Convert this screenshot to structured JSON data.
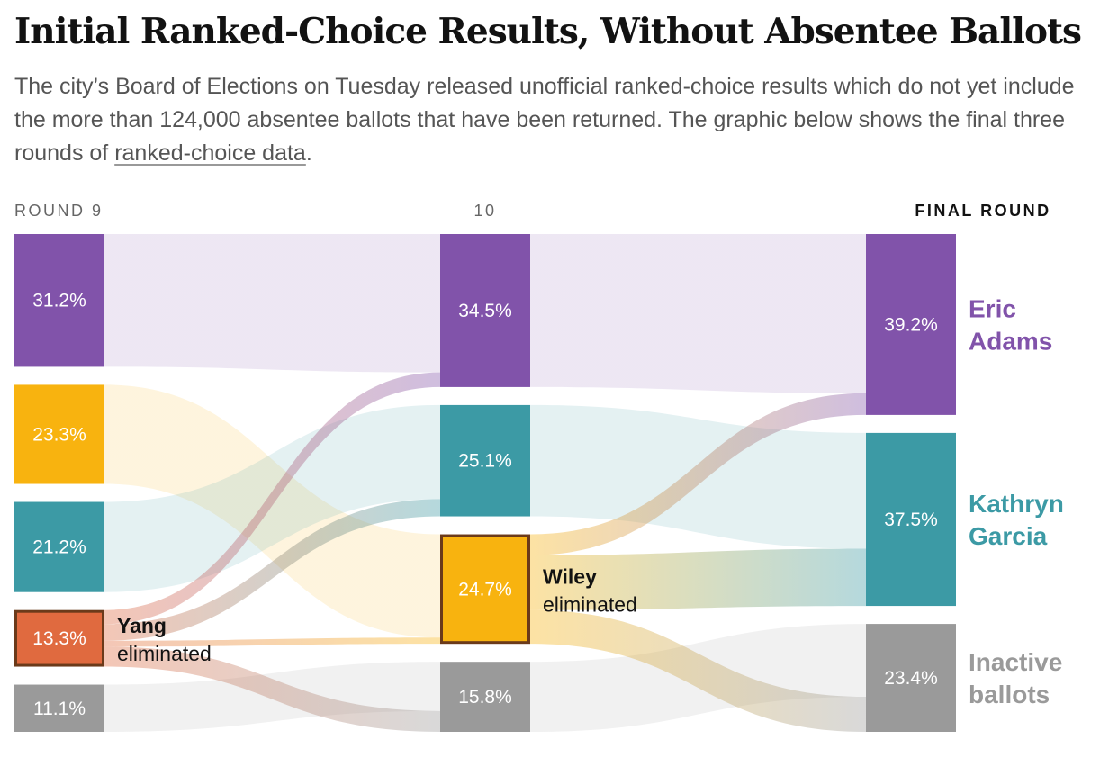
{
  "title": "Initial Ranked-Choice Results, Without Absentee Ballots",
  "subtitle": {
    "before_link": "The city’s Board of Elections on Tuesday released unofficial ranked-choice results which do not yet include the more than 124,000 absentee ballots that have been returned. The graphic below shows the final three rounds of ",
    "link_text": "ranked-choice data",
    "after_link": "."
  },
  "colors": {
    "adams": "#8153aa",
    "garcia": "#3c9aa5",
    "wiley": "#f8b30f",
    "yang": "#e06a3f",
    "inactive": "#9a9a9a",
    "eliminated_border": "#6b3a1a"
  },
  "chart_data": {
    "type": "sankey",
    "rounds": [
      "ROUND 9",
      "10",
      "FINAL ROUND"
    ],
    "columns": [
      {
        "round": "ROUND 9",
        "entries": [
          {
            "key": "adams",
            "value": 31.2,
            "label": "31.2%"
          },
          {
            "key": "wiley",
            "value": 23.3,
            "label": "23.3%"
          },
          {
            "key": "garcia",
            "value": 21.2,
            "label": "21.2%"
          },
          {
            "key": "yang",
            "value": 13.3,
            "label": "13.3%",
            "eliminated": true
          },
          {
            "key": "inactive",
            "value": 11.1,
            "label": "11.1%"
          }
        ]
      },
      {
        "round": "10",
        "entries": [
          {
            "key": "adams",
            "value": 34.5,
            "label": "34.5%"
          },
          {
            "key": "garcia",
            "value": 25.1,
            "label": "25.1%"
          },
          {
            "key": "wiley",
            "value": 24.7,
            "label": "24.7%",
            "eliminated": true
          },
          {
            "key": "inactive",
            "value": 15.8,
            "label": "15.8%"
          }
        ]
      },
      {
        "round": "FINAL ROUND",
        "entries": [
          {
            "key": "adams",
            "value": 39.2,
            "label": "39.2%"
          },
          {
            "key": "garcia",
            "value": 37.5,
            "label": "37.5%"
          },
          {
            "key": "inactive",
            "value": 23.4,
            "label": "23.4%"
          }
        ]
      }
    ],
    "candidate_labels": [
      {
        "key": "adams",
        "lines": [
          "Eric",
          "Adams"
        ]
      },
      {
        "key": "garcia",
        "lines": [
          "Kathryn",
          "Garcia"
        ]
      },
      {
        "key": "inactive",
        "lines": [
          "Inactive",
          "ballots"
        ]
      }
    ],
    "eliminations": [
      {
        "column": 0,
        "key": "yang",
        "name": "Yang",
        "text": "eliminated"
      },
      {
        "column": 1,
        "key": "wiley",
        "name": "Wiley",
        "text": "eliminated"
      }
    ],
    "flows": [
      {
        "from_col": 0,
        "from": "adams",
        "to": "adams",
        "value": 31.2,
        "kind": "carry"
      },
      {
        "from_col": 0,
        "from": "wiley",
        "to": "wiley",
        "value": 23.3,
        "kind": "carry"
      },
      {
        "from_col": 0,
        "from": "garcia",
        "to": "garcia",
        "value": 21.2,
        "kind": "carry"
      },
      {
        "from_col": 0,
        "from": "inactive",
        "to": "inactive",
        "value": 11.1,
        "kind": "carry"
      },
      {
        "from_col": 0,
        "from": "yang",
        "to": "adams",
        "value": 3.3,
        "kind": "transfer"
      },
      {
        "from_col": 0,
        "from": "yang",
        "to": "garcia",
        "value": 3.9,
        "kind": "transfer"
      },
      {
        "from_col": 0,
        "from": "yang",
        "to": "wiley",
        "value": 1.4,
        "kind": "transfer"
      },
      {
        "from_col": 0,
        "from": "yang",
        "to": "inactive",
        "value": 4.7,
        "kind": "transfer"
      },
      {
        "from_col": 1,
        "from": "adams",
        "to": "adams",
        "value": 34.5,
        "kind": "carry"
      },
      {
        "from_col": 1,
        "from": "garcia",
        "to": "garcia",
        "value": 25.1,
        "kind": "carry"
      },
      {
        "from_col": 1,
        "from": "inactive",
        "to": "inactive",
        "value": 15.8,
        "kind": "carry"
      },
      {
        "from_col": 1,
        "from": "wiley",
        "to": "adams",
        "value": 4.7,
        "kind": "transfer"
      },
      {
        "from_col": 1,
        "from": "wiley",
        "to": "garcia",
        "value": 12.4,
        "kind": "transfer"
      },
      {
        "from_col": 1,
        "from": "wiley",
        "to": "inactive",
        "value": 7.6,
        "kind": "transfer"
      }
    ]
  }
}
